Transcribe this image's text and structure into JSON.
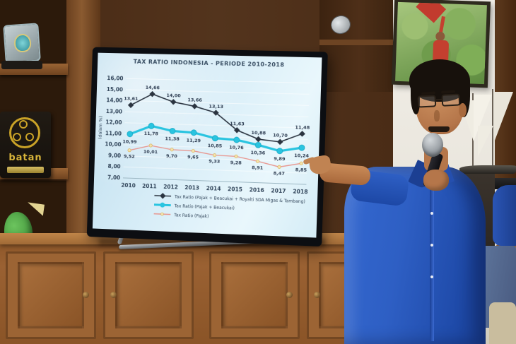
{
  "scene": {
    "plaque": {
      "text": "batan"
    },
    "colors": {
      "wood_dark": "#4a2c16",
      "sideboard": "#9a6132",
      "wall": "#efece4",
      "shirt_blue": "#2e5fc4",
      "screen_bg": "#d9eef8"
    }
  },
  "chart_data": {
    "type": "line",
    "title": "TAX RATIO INDONESIA - PERIODE 2010-2018",
    "ylabel": "(dalam %)",
    "xlabel": "",
    "x": [
      "2010",
      "2011",
      "2012",
      "2013",
      "2014",
      "2015",
      "2016",
      "2017",
      "2018"
    ],
    "ylim": [
      7,
      16
    ],
    "ytick_step": 1,
    "decimal_comma": true,
    "grid": "faint horizontal gridlines",
    "legend_position": "below plot, left aligned",
    "series": [
      {
        "name": "Tax Ratio (Pajak + Beacukai + Royalti SDA Migas & Tambang)",
        "color": "#2b3440",
        "marker": "diamond",
        "values": [
          13.61,
          14.66,
          14.0,
          13.66,
          13.13,
          11.63,
          10.88,
          10.7,
          11.48
        ]
      },
      {
        "name": "Tax Ratio (Pajak + Beacukai)",
        "color": "#29c4e0",
        "marker": "circle",
        "values": [
          10.99,
          11.78,
          11.38,
          11.29,
          10.85,
          10.76,
          10.36,
          9.89,
          10.24
        ]
      },
      {
        "name": "Tax Ratio (Pajak)",
        "color": "#e8938c",
        "marker": "dot",
        "values": [
          9.52,
          10.01,
          9.7,
          9.65,
          9.33,
          9.28,
          8.91,
          8.47,
          8.85
        ]
      }
    ]
  }
}
